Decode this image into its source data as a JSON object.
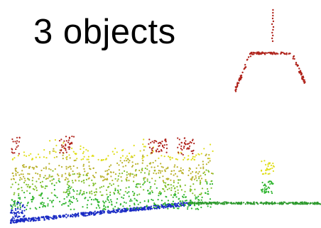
{
  "title": "3 objects",
  "palette": {
    "ground": "#1a2bc4",
    "ground_right": "#2e9a2e",
    "low": "#2fb52f",
    "mid_low": "#7fbf2a",
    "mid": "#b9b12a",
    "mid_high": "#d6d61f",
    "high": "#b0241c",
    "highlight": "#e0de1a"
  }
}
